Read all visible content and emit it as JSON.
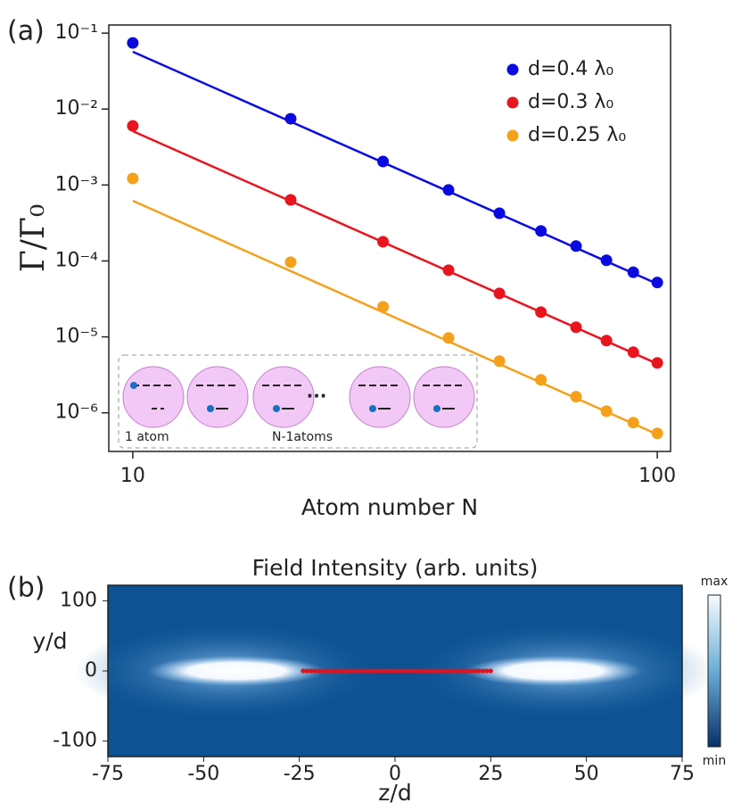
{
  "chart_data": [
    {
      "type": "scatter",
      "panel": "(a)",
      "xlabel": "Atom number N",
      "ylabel": "Γ/Γ₀",
      "xscale": "log",
      "yscale": "log",
      "xlim": [
        9,
        106
      ],
      "ylim": [
        3.1e-07,
        0.128
      ],
      "xticks": [
        10,
        100
      ],
      "yticks": [
        {
          "value": 0.1,
          "label": "10⁻¹"
        },
        {
          "value": 0.01,
          "label": "10⁻²"
        },
        {
          "value": 0.001,
          "label": "10⁻³"
        },
        {
          "value": 0.0001,
          "label": "10⁻⁴"
        },
        {
          "value": 1e-05,
          "label": "10⁻⁵"
        },
        {
          "value": 1e-06,
          "label": "10⁻⁶"
        }
      ],
      "x": [
        10,
        20,
        30,
        40,
        50,
        60,
        70,
        80,
        90,
        100
      ],
      "legend": "upper right",
      "series": [
        {
          "name": "d=0.4 λ₀",
          "color": "#0a0ae0",
          "values": [
            0.0743,
            0.00746,
            0.00204,
            0.00086,
            0.000425,
            0.000248,
            0.000157,
            0.000102,
            7.1e-05,
            5.2e-05
          ],
          "fit": {
            "x": [
              10,
              100
            ],
            "values": [
              0.0568,
              5e-05
            ]
          }
        },
        {
          "name": "d=0.3 λ₀",
          "color": "#e8141e",
          "values": [
            0.00601,
            0.000638,
            0.000179,
            7.56e-05,
            3.74e-05,
            2.12e-05,
            1.34e-05,
            8.93e-06,
            6.28e-06,
            4.54e-06
          ],
          "fit": {
            "x": [
              10,
              100
            ],
            "values": [
              0.00512,
              4.43e-06
            ]
          }
        },
        {
          "name": "d=0.25 λ₀",
          "color": "#f5a01a",
          "values": [
            0.00122,
            9.64e-05,
            2.49e-05,
            9.68e-06,
            4.8e-06,
            2.72e-06,
            1.63e-06,
            1.05e-06,
            7.43e-07,
            5.37e-07
          ],
          "fit": {
            "x": [
              10,
              100
            ],
            "values": [
              0.00062,
              5.2e-07
            ]
          }
        }
      ],
      "inset": {
        "labels": [
          "1 atom",
          "N-1atoms"
        ],
        "ellipsis": "..."
      }
    },
    {
      "type": "heatmap",
      "panel": "(b)",
      "title": "Field Intensity (arb. units)",
      "xlabel": "z/d",
      "ylabel": "y/d",
      "xlim": [
        -75,
        75
      ],
      "ylim": [
        -122,
        122
      ],
      "xticks": [
        -75,
        -50,
        -25,
        0,
        25,
        50,
        75
      ],
      "yticks": [
        -100,
        0,
        100
      ],
      "colorbar": {
        "max": "max",
        "min": "min"
      },
      "atoms": {
        "z_first": -24,
        "z_last": 25,
        "count": 50,
        "color": "#e0141e"
      }
    }
  ]
}
